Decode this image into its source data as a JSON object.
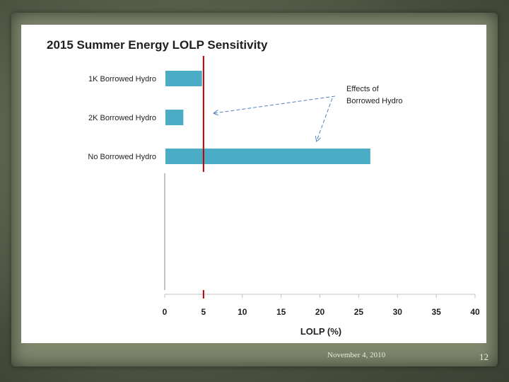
{
  "slide": {
    "footer_date": "November 4, 2010",
    "page_number": "12"
  },
  "colors": {
    "bar": "#4bacc6",
    "threshold_line": "#c00000",
    "arrow": "#4f81bd",
    "axis": "#9a9a9a"
  },
  "chart_data": {
    "type": "bar",
    "orientation": "horizontal",
    "title": "2015 Summer Energy LOLP Sensitivity",
    "xlabel": "LOLP (%)",
    "ylabel": "",
    "xlim": [
      0,
      40
    ],
    "xticks": [
      0,
      5,
      10,
      15,
      20,
      25,
      30,
      35,
      40
    ],
    "categories": [
      "1K Borrowed Hydro",
      "2K Borrowed Hydro",
      "No Borrowed Hydro"
    ],
    "values": [
      4.8,
      2.4,
      26.5
    ],
    "threshold": {
      "value": 5
    },
    "annotation": {
      "line1": "Effects of",
      "line2": "Borrowed Hydro"
    }
  }
}
